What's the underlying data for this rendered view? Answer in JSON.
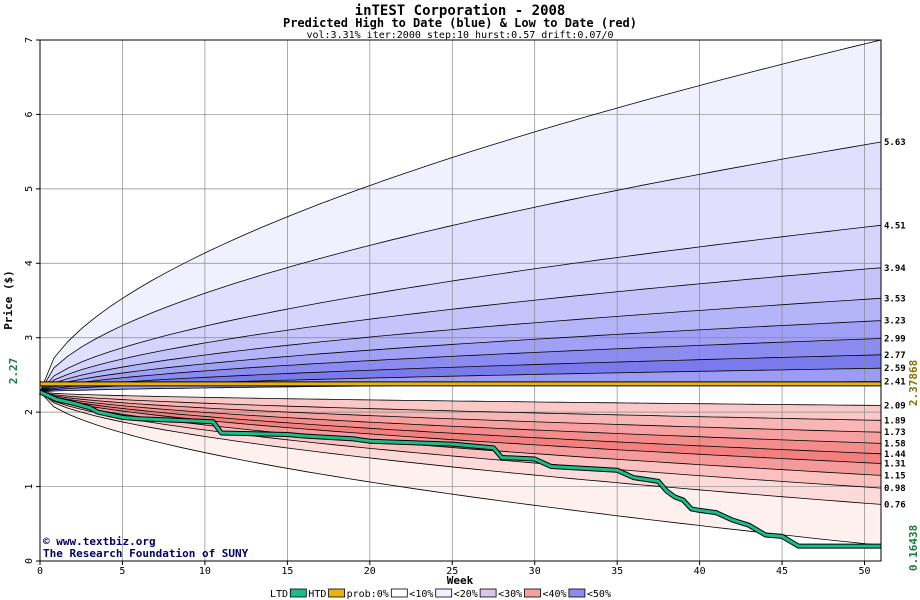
{
  "chart_data": {
    "type": "area",
    "title": "inTEST Corporation - 2008",
    "subtitle": "Predicted High to Date (blue) &  Low to Date (red)",
    "params": "vol:3.31% iter:2000 step:10 hurst:0.57 drift:0.07/0",
    "xlabel": "Week",
    "ylabel": "Price ($)",
    "xlim": [
      0,
      51
    ],
    "ylim": [
      0,
      7
    ],
    "x_ticks": [
      "0",
      "5",
      "10",
      "15",
      "20",
      "25",
      "30",
      "35",
      "40",
      "45",
      "50"
    ],
    "y_ticks": [
      "0",
      "1",
      "2",
      "3",
      "4",
      "5",
      "6",
      "7"
    ],
    "start_price": 2.27,
    "start_price_label": "2.27",
    "current_price": 2.37868,
    "current_price_label": "2.37868",
    "min_low_label": "0.16438",
    "high_percentiles": [
      {
        "end": 7.0
      },
      {
        "end": 5.63,
        "label": "5.63"
      },
      {
        "end": 4.51,
        "label": "4.51"
      },
      {
        "end": 3.94,
        "label": "3.94"
      },
      {
        "end": 3.53,
        "label": "3.53"
      },
      {
        "end": 3.23,
        "label": "3.23"
      },
      {
        "end": 2.99,
        "label": "2.99"
      },
      {
        "end": 2.77,
        "label": "2.77"
      },
      {
        "end": 2.59,
        "label": "2.59"
      },
      {
        "end": 2.41,
        "label": "2.41"
      }
    ],
    "low_percentiles": [
      {
        "end": 2.09,
        "label": "2.09"
      },
      {
        "end": 1.89,
        "label": "1.89"
      },
      {
        "end": 1.73,
        "label": "1.73"
      },
      {
        "end": 1.58,
        "label": "1.58"
      },
      {
        "end": 1.44,
        "label": "1.44"
      },
      {
        "end": 1.31,
        "label": "1.31"
      },
      {
        "end": 1.15,
        "label": "1.15"
      },
      {
        "end": 0.98,
        "label": "0.98"
      },
      {
        "end": 0.76,
        "label": "0.76"
      },
      {
        "end": 0.21
      }
    ],
    "htd_series": {
      "x": [
        0,
        1,
        2,
        3,
        3.5,
        5,
        6,
        10.5,
        11,
        15,
        16,
        19,
        20,
        25,
        26,
        27.5,
        28,
        30,
        31,
        35,
        36,
        37.5,
        38,
        38.5,
        39,
        39.5,
        40,
        41,
        42,
        43,
        44,
        45,
        46,
        51
      ],
      "y": [
        2.27,
        2.17,
        2.12,
        2.06,
        2.0,
        1.93,
        1.91,
        1.87,
        1.72,
        1.7,
        1.68,
        1.64,
        1.61,
        1.57,
        1.55,
        1.52,
        1.39,
        1.37,
        1.27,
        1.22,
        1.12,
        1.07,
        0.94,
        0.86,
        0.82,
        0.7,
        0.68,
        0.65,
        0.55,
        0.48,
        0.35,
        0.33,
        0.2,
        0.2
      ]
    },
    "current_line": {
      "x": [
        0,
        51
      ],
      "y": [
        2.38,
        2.38
      ]
    },
    "colors": {
      "high_bands": [
        "#f0f0ff",
        "#e0e0fe",
        "#d4d4fc",
        "#c4c4fa",
        "#b4b4f8",
        "#a0a0f6",
        "#8c8cf0",
        "#7a7aec",
        "#9c9cf4"
      ],
      "low_bands": [
        "#fbc8c8",
        "#f9b6b6",
        "#f7a0a0",
        "#f58c8c",
        "#f47f7f",
        "#f59a9a",
        "#fbc0c0",
        "#fddada",
        "#fff0f0"
      ],
      "htd": "#1abc8c",
      "current": "#e8b40a",
      "grid": "#888888",
      "label_green": "#1a7a3a",
      "label_olive": "#8b7000",
      "credit": "#000066"
    }
  },
  "credit": {
    "site": "www.textbiz.org",
    "org": "The Research Foundation of SUNY"
  },
  "legend": {
    "ltd": "LTD",
    "htd": "HTD",
    "prob": "prob:0%",
    "items": [
      {
        "label": "<10%",
        "color": "#ffffff"
      },
      {
        "label": "<20%",
        "color": "#f0f0ff"
      },
      {
        "label": "<30%",
        "color": "#d8c8e8"
      },
      {
        "label": "<40%",
        "color": "#f7a0a0"
      },
      {
        "label": "<50%",
        "color": "#8c8cf0"
      }
    ]
  }
}
